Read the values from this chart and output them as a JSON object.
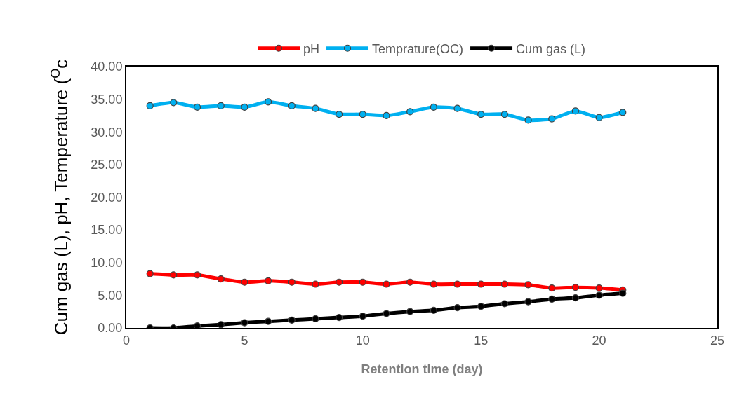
{
  "chart_data": {
    "type": "line",
    "xlabel": "Retention time (day)",
    "ylabel": "Cum gas (L), pH, Temperature ($^{O}$c",
    "x": [
      1,
      2,
      3,
      4,
      5,
      6,
      7,
      8,
      9,
      10,
      11,
      12,
      13,
      14,
      15,
      16,
      17,
      18,
      19,
      20,
      21
    ],
    "xlim": [
      0,
      25
    ],
    "xticks": [
      0,
      5,
      10,
      15,
      20,
      25
    ],
    "ylim": [
      0,
      40
    ],
    "yticks": [
      {
        "value": 0,
        "label": "0.00"
      },
      {
        "value": 5,
        "label": "5.00"
      },
      {
        "value": 10,
        "label": "10.00"
      },
      {
        "value": 15,
        "label": "15.00"
      },
      {
        "value": 20,
        "label": "20.00"
      },
      {
        "value": 25,
        "label": "25.00"
      },
      {
        "value": 30,
        "label": "30.00"
      },
      {
        "value": 35,
        "label": "35.00"
      },
      {
        "value": 40,
        "label": "40.00"
      }
    ],
    "grid": false,
    "legend": "top",
    "marker": "circle",
    "line_style": "solid",
    "series": [
      {
        "name": "pH",
        "color": "#ff0000",
        "values": [
          8.3,
          8.1,
          8.1,
          7.5,
          7.0,
          7.2,
          7.0,
          6.7,
          7.0,
          7.0,
          6.7,
          7.0,
          6.7,
          6.7,
          6.7,
          6.7,
          6.6,
          6.1,
          6.2,
          6.1,
          5.8
        ]
      },
      {
        "name": "Temprature(OC)",
        "color": "#00b0f0",
        "values": [
          34.0,
          34.5,
          33.8,
          34.0,
          33.8,
          34.6,
          34.0,
          33.6,
          32.7,
          32.7,
          32.5,
          33.1,
          33.8,
          33.6,
          32.7,
          32.7,
          31.8,
          32.0,
          33.2,
          32.2,
          33.0
        ]
      },
      {
        "name": "Cum gas (L)",
        "color": "#000000",
        "values": [
          0,
          0,
          0.3,
          0.5,
          0.8,
          1.0,
          1.2,
          1.4,
          1.6,
          1.8,
          2.2,
          2.5,
          2.7,
          3.1,
          3.3,
          3.7,
          4.0,
          4.4,
          4.6,
          5.0,
          5.3
        ]
      }
    ]
  }
}
